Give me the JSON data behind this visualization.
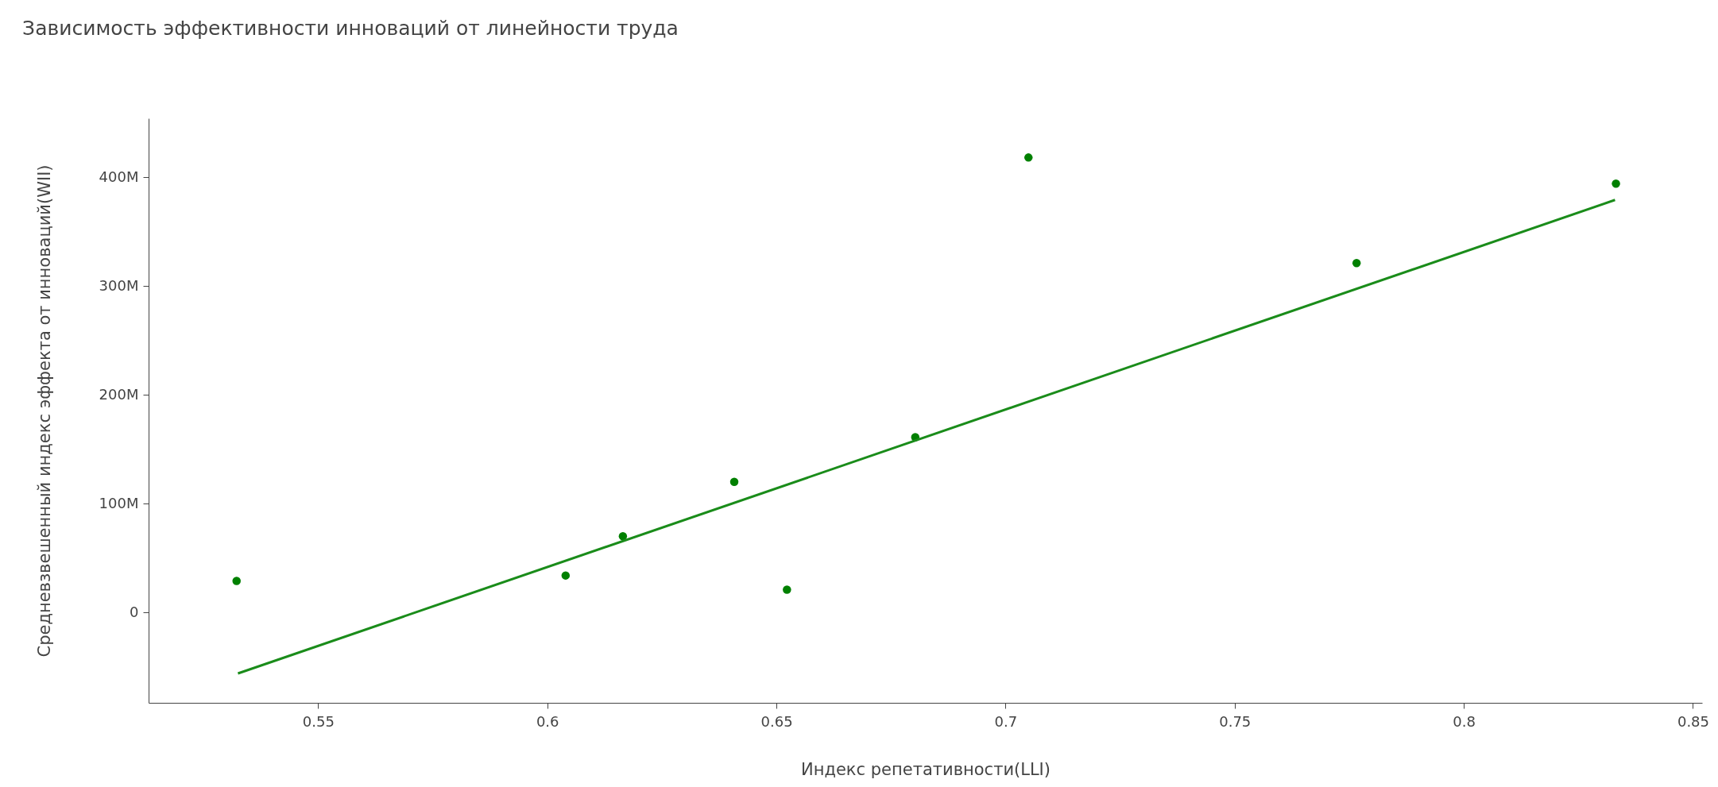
{
  "chart_data": {
    "type": "scatter",
    "title": "Зависимость эффективности инноваций от линейности труда",
    "xlabel": "Индекс репетативности(LLI)",
    "ylabel": "Средневзвешенный индекс эффекта от инноваций(WII)",
    "xlim": [
      0.513,
      0.852
    ],
    "xticks": [
      0.55,
      0.6,
      0.65,
      0.7,
      0.75,
      0.8,
      0.85
    ],
    "ylim": [
      -83000000,
      454000000
    ],
    "yticks": [
      0,
      {
        "value": 100000000,
        "label": "100M"
      },
      {
        "value": 200000000,
        "label": "200M"
      },
      {
        "value": 300000000,
        "label": "300M"
      },
      {
        "value": 400000000,
        "label": "400M"
      }
    ],
    "series": [
      {
        "marker": "circle",
        "color": "#008000",
        "x": [
          0.5322,
          0.604,
          0.6165,
          0.6408,
          0.6523,
          0.6803,
          0.705,
          0.7766,
          0.8332
        ],
        "values": [
          29000000,
          34000000,
          70000000,
          120000000,
          21000000,
          161000000,
          418000000,
          321000000,
          394000000
        ]
      },
      {
        "type": "line",
        "line_style": "solid",
        "color": "#1a8c1a",
        "x": [
          0.5325,
          0.833
        ],
        "values": [
          -56000000,
          379000000
        ]
      }
    ]
  }
}
